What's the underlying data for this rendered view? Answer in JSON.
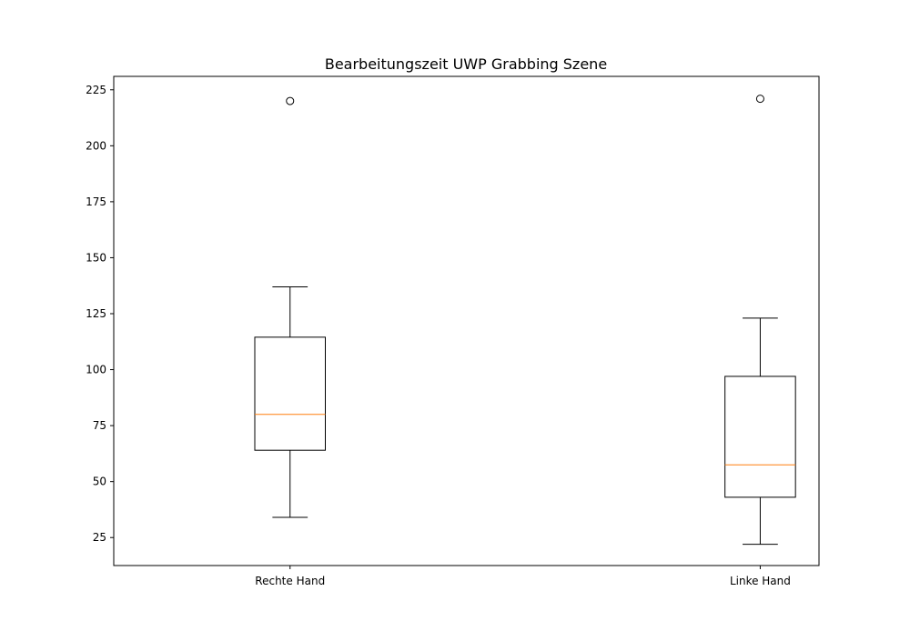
{
  "chart_data": {
    "type": "box",
    "title": "Bearbeitungszeit UWP Grabbing Szene",
    "xlabel": "",
    "ylabel": "",
    "ylim": [
      12.5,
      231
    ],
    "yticks": [
      25,
      50,
      75,
      100,
      125,
      150,
      175,
      200,
      225
    ],
    "grid": false,
    "categories": [
      "Rechte Hand",
      "Linke Hand"
    ],
    "boxes": [
      {
        "category": "Rechte Hand",
        "whisker_low": 34,
        "q1": 64,
        "median": 80,
        "q3": 114.5,
        "whisker_high": 137,
        "outliers": [
          220
        ]
      },
      {
        "category": "Linke Hand",
        "whisker_low": 22,
        "q1": 43,
        "median": 57.5,
        "q3": 97,
        "whisker_high": 123,
        "outliers": [
          221
        ]
      }
    ],
    "colors": {
      "box": "#000000",
      "median": "#ff7f0e",
      "outlier": "#000000"
    }
  }
}
